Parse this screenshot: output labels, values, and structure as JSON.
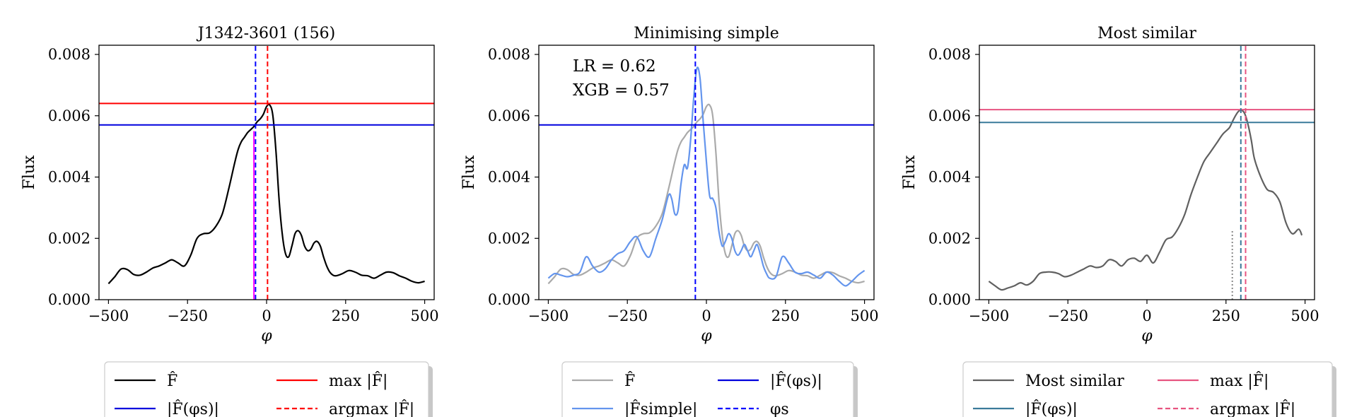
{
  "chart_data": [
    {
      "type": "line",
      "title": "J1342-3601 (156)",
      "xlabel": "φ",
      "ylabel": "Flux",
      "xlim": [
        -530,
        530
      ],
      "ylim": [
        0,
        0.0083
      ],
      "xticks": [
        -500,
        -250,
        0,
        250,
        500
      ],
      "xtick_labels": [
        "−500",
        "−250",
        "0",
        "250",
        "500"
      ],
      "yticks": [
        0,
        0.002,
        0.004,
        0.006,
        0.008
      ],
      "ytick_labels": [
        "0.000",
        "0.002",
        "0.004",
        "0.006",
        "0.008"
      ],
      "series": [
        {
          "name": "F̂",
          "color": "#000000",
          "style": "solid",
          "x": [
            -500,
            -480,
            -460,
            -440,
            -420,
            -400,
            -380,
            -360,
            -340,
            -320,
            -300,
            -280,
            -260,
            -240,
            -220,
            -200,
            -180,
            -160,
            -140,
            -120,
            -100,
            -90,
            -80,
            -70,
            -60,
            -50,
            -40,
            -30,
            -20,
            -10,
            0,
            10,
            20,
            30,
            40,
            50,
            60,
            70,
            80,
            90,
            100,
            110,
            120,
            130,
            140,
            150,
            160,
            170,
            180,
            190,
            200,
            210,
            220,
            240,
            260,
            280,
            300,
            320,
            340,
            360,
            380,
            400,
            420,
            440,
            460,
            480,
            500
          ],
          "values": [
            0.00052,
            0.00075,
            0.001,
            0.00098,
            0.00082,
            0.0008,
            0.0009,
            0.00103,
            0.0011,
            0.0012,
            0.0013,
            0.0012,
            0.0011,
            0.00145,
            0.002,
            0.00215,
            0.00218,
            0.0024,
            0.0028,
            0.0036,
            0.0045,
            0.0049,
            0.00515,
            0.0053,
            0.00545,
            0.00555,
            0.00565,
            0.0058,
            0.0059,
            0.00605,
            0.0063,
            0.00635,
            0.006,
            0.0048,
            0.0032,
            0.0021,
            0.0015,
            0.0014,
            0.00175,
            0.00215,
            0.00225,
            0.0021,
            0.00175,
            0.0016,
            0.00165,
            0.00185,
            0.0019,
            0.00175,
            0.0014,
            0.0011,
            0.0009,
            0.0008,
            0.00078,
            0.00085,
            0.00095,
            0.0009,
            0.0008,
            0.00078,
            0.0007,
            0.0008,
            0.0009,
            0.00088,
            0.00078,
            0.0007,
            0.0006,
            0.00055,
            0.0006
          ]
        }
      ],
      "hlines": [
        {
          "name": "max|F̂|",
          "y": 0.0064,
          "color": "#ff0000",
          "style": "solid"
        },
        {
          "name": "|F̂(φs)|",
          "y": 0.0057,
          "color": "#0000dd",
          "style": "solid"
        }
      ],
      "vlines": [
        {
          "name": "argmax|F̂|",
          "x": 3,
          "color": "#ff0000",
          "style": "dashed"
        },
        {
          "name": "φs",
          "x": -35,
          "color": "#0000ff",
          "style": "dashed"
        },
        {
          "name": "marker",
          "x": -40,
          "color": "#ff00ff",
          "style": "solid",
          "ymax": 0.0055
        }
      ],
      "legend": {
        "placement": "below",
        "items": [
          {
            "label": "F̂",
            "color": "#000000",
            "style": "solid"
          },
          {
            "label": "max |F̂|",
            "color": "#ff0000",
            "style": "solid"
          },
          {
            "label": "|F̂(φs)|",
            "color": "#0000dd",
            "style": "solid"
          },
          {
            "label": "argmax |F̂|",
            "color": "#ff0000",
            "style": "dashed"
          }
        ]
      },
      "annotations": []
    },
    {
      "type": "line",
      "title": "Minimising simple",
      "xlabel": "φ",
      "ylabel": "Flux",
      "xlim": [
        -530,
        530
      ],
      "ylim": [
        0,
        0.0083
      ],
      "xticks": [
        -500,
        -250,
        0,
        250,
        500
      ],
      "xtick_labels": [
        "−500",
        "−250",
        "0",
        "250",
        "500"
      ],
      "yticks": [
        0,
        0.002,
        0.004,
        0.006,
        0.008
      ],
      "ytick_labels": [
        "0.000",
        "0.002",
        "0.004",
        "0.006",
        "0.008"
      ],
      "series": [
        {
          "name": "F̂",
          "color": "#aaaaaa",
          "style": "solid",
          "x": [
            -500,
            -480,
            -460,
            -440,
            -420,
            -400,
            -380,
            -360,
            -340,
            -320,
            -300,
            -280,
            -260,
            -240,
            -220,
            -200,
            -180,
            -160,
            -140,
            -120,
            -100,
            -90,
            -80,
            -70,
            -60,
            -50,
            -40,
            -30,
            -20,
            -10,
            0,
            10,
            20,
            30,
            40,
            50,
            60,
            70,
            80,
            90,
            100,
            110,
            120,
            130,
            140,
            150,
            160,
            170,
            180,
            190,
            200,
            210,
            220,
            240,
            260,
            280,
            300,
            320,
            340,
            360,
            380,
            400,
            420,
            440,
            460,
            480,
            500
          ],
          "values": [
            0.00052,
            0.00075,
            0.001,
            0.00098,
            0.00082,
            0.0008,
            0.0009,
            0.00103,
            0.0011,
            0.0012,
            0.0013,
            0.0012,
            0.0011,
            0.00145,
            0.002,
            0.00215,
            0.00218,
            0.0024,
            0.0028,
            0.0036,
            0.0045,
            0.0049,
            0.00515,
            0.0053,
            0.00545,
            0.00555,
            0.00565,
            0.0058,
            0.0059,
            0.00605,
            0.0063,
            0.00635,
            0.006,
            0.0048,
            0.0032,
            0.0021,
            0.0015,
            0.0014,
            0.00175,
            0.00215,
            0.00225,
            0.0021,
            0.00175,
            0.0016,
            0.00165,
            0.00185,
            0.0019,
            0.00175,
            0.0014,
            0.0011,
            0.0009,
            0.0008,
            0.00078,
            0.00085,
            0.00095,
            0.0009,
            0.0008,
            0.00078,
            0.0007,
            0.0008,
            0.0009,
            0.00088,
            0.00078,
            0.0007,
            0.0006,
            0.00055,
            0.0006
          ]
        },
        {
          "name": "|F̂simple|",
          "color": "#6495ed",
          "style": "solid",
          "x": [
            -500,
            -480,
            -460,
            -440,
            -420,
            -400,
            -380,
            -360,
            -340,
            -320,
            -300,
            -280,
            -260,
            -240,
            -220,
            -200,
            -180,
            -160,
            -140,
            -120,
            -110,
            -100,
            -90,
            -80,
            -70,
            -60,
            -50,
            -40,
            -30,
            -20,
            -10,
            0,
            10,
            20,
            30,
            40,
            50,
            60,
            70,
            80,
            90,
            100,
            110,
            120,
            130,
            140,
            150,
            160,
            170,
            180,
            190,
            200,
            220,
            240,
            260,
            280,
            300,
            320,
            340,
            360,
            380,
            400,
            420,
            440,
            460,
            480,
            500
          ],
          "values": [
            0.0007,
            0.00085,
            0.0008,
            0.00075,
            0.0008,
            0.0009,
            0.0014,
            0.0011,
            0.0009,
            0.001,
            0.0013,
            0.0015,
            0.0016,
            0.0019,
            0.00205,
            0.0016,
            0.0014,
            0.002,
            0.0026,
            0.0034,
            0.0033,
            0.0028,
            0.0029,
            0.0038,
            0.0044,
            0.0043,
            0.0052,
            0.0066,
            0.00755,
            0.0072,
            0.0058,
            0.0045,
            0.0034,
            0.0033,
            0.003,
            0.0022,
            0.00175,
            0.0019,
            0.00215,
            0.002,
            0.0016,
            0.00145,
            0.0016,
            0.0018,
            0.0016,
            0.0014,
            0.0016,
            0.0018,
            0.0015,
            0.0011,
            0.00085,
            0.0007,
            0.00075,
            0.0014,
            0.0012,
            0.0009,
            0.00085,
            0.0009,
            0.0008,
            0.0007,
            0.0009,
            0.0008,
            0.0006,
            0.00045,
            0.0006,
            0.0008,
            0.00095
          ]
        }
      ],
      "hlines": [
        {
          "name": "|F̂(φs)|",
          "y": 0.0057,
          "color": "#0000dd",
          "style": "solid"
        }
      ],
      "vlines": [
        {
          "name": "φs",
          "x": -35,
          "color": "#0000ff",
          "style": "dashed"
        }
      ],
      "legend": {
        "placement": "below",
        "items": [
          {
            "label": "F̂",
            "color": "#aaaaaa",
            "style": "solid"
          },
          {
            "label": "|F̂(φs)|",
            "color": "#0000dd",
            "style": "solid"
          },
          {
            "label": "|F̂simple|",
            "color": "#6495ed",
            "style": "solid"
          },
          {
            "label": "φs",
            "color": "#0000ff",
            "style": "dashed"
          }
        ]
      },
      "annotations": [
        "LR = 0.62",
        "XGB = 0.57"
      ]
    },
    {
      "type": "line",
      "title": "Most similar",
      "xlabel": "φ",
      "ylabel": "Flux",
      "xlim": [
        -530,
        530
      ],
      "ylim": [
        0,
        0.0083
      ],
      "xticks": [
        -500,
        -250,
        0,
        250,
        500
      ],
      "xtick_labels": [
        "−500",
        "−250",
        "0",
        "250",
        "500"
      ],
      "yticks": [
        0,
        0.002,
        0.004,
        0.006,
        0.008
      ],
      "ytick_labels": [
        "0.000",
        "0.002",
        "0.004",
        "0.006",
        "0.008"
      ],
      "series": [
        {
          "name": "Most similar",
          "color": "#606060",
          "style": "solid",
          "x": [
            -500,
            -480,
            -460,
            -440,
            -420,
            -400,
            -380,
            -360,
            -340,
            -320,
            -300,
            -280,
            -260,
            -240,
            -220,
            -200,
            -180,
            -160,
            -140,
            -120,
            -100,
            -80,
            -60,
            -40,
            -20,
            0,
            20,
            40,
            60,
            80,
            100,
            120,
            140,
            160,
            180,
            200,
            220,
            240,
            260,
            270,
            280,
            290,
            300,
            310,
            320,
            330,
            340,
            360,
            380,
            400,
            420,
            440,
            460,
            480,
            490
          ],
          "values": [
            0.0006,
            0.00045,
            0.00032,
            0.00038,
            0.00045,
            0.00055,
            0.00048,
            0.0006,
            0.00085,
            0.0009,
            0.0009,
            0.00085,
            0.00075,
            0.0008,
            0.0009,
            0.001,
            0.0011,
            0.00105,
            0.0011,
            0.0013,
            0.00125,
            0.0011,
            0.0013,
            0.00135,
            0.00125,
            0.00145,
            0.0012,
            0.00155,
            0.00195,
            0.00205,
            0.00235,
            0.0028,
            0.00345,
            0.004,
            0.0045,
            0.0048,
            0.0051,
            0.0054,
            0.0056,
            0.0058,
            0.006,
            0.00615,
            0.00618,
            0.00605,
            0.0057,
            0.0052,
            0.0046,
            0.004,
            0.0036,
            0.0035,
            0.0032,
            0.0025,
            0.00215,
            0.0023,
            0.0021
          ]
        }
      ],
      "hlines": [
        {
          "name": "max|F̂|",
          "y": 0.0062,
          "color": "#e75480",
          "style": "solid"
        },
        {
          "name": "|F̂(φs)|",
          "y": 0.00578,
          "color": "#3a7a9a",
          "style": "solid"
        }
      ],
      "vlines": [
        {
          "name": "argmax|F̂|",
          "x": 312,
          "color": "#e75480",
          "style": "dashed"
        },
        {
          "name": "φs",
          "x": 297,
          "color": "#3a7a9a",
          "style": "dashed"
        },
        {
          "name": "marker",
          "x": 270,
          "color": "#888888",
          "style": "dotted",
          "ymax": 0.0023
        }
      ],
      "legend": {
        "placement": "below",
        "items": [
          {
            "label": "Most similar",
            "color": "#606060",
            "style": "solid"
          },
          {
            "label": "max |F̂|",
            "color": "#e75480",
            "style": "solid"
          },
          {
            "label": "|F̂(φs)|",
            "color": "#3a7a9a",
            "style": "solid"
          },
          {
            "label": "argmax |F̂|",
            "color": "#e75480",
            "style": "dashed"
          }
        ]
      },
      "annotations": []
    }
  ]
}
